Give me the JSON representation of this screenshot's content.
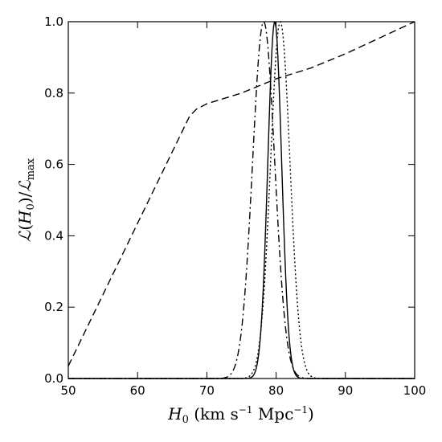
{
  "chart_data": {
    "type": "line",
    "xlabel": "H_0 (km s^-1 Mpc^-1)",
    "ylabel": "L(H_0)/L_max",
    "xlim": [
      50,
      100
    ],
    "ylim": [
      0,
      1.0
    ],
    "x_ticks": [
      "50",
      "60",
      "70",
      "80",
      "90",
      "100"
    ],
    "y_ticks": [
      "0.0",
      "0.2",
      "0.4",
      "0.6",
      "0.8",
      "1.0"
    ],
    "legend": "none",
    "grid": false,
    "series": [
      {
        "style": "dashed",
        "x": [
          50,
          52,
          54,
          56,
          58,
          60,
          62,
          64,
          66,
          67.5,
          68.5,
          70,
          75,
          80,
          85,
          90,
          95,
          100
        ],
        "y": [
          0.035,
          0.115,
          0.195,
          0.275,
          0.355,
          0.435,
          0.515,
          0.595,
          0.675,
          0.735,
          0.755,
          0.77,
          0.8,
          0.84,
          0.87,
          0.91,
          0.955,
          1.0
        ]
      },
      {
        "style": "solid",
        "gaussian": {
          "mean": 79.8,
          "sigma": 1.0
        },
        "x": [
          76,
          77,
          78,
          78.5,
          79,
          79.5,
          79.8,
          80.1,
          80.6,
          81.1,
          81.6,
          82.6,
          83.6
        ],
        "y": [
          0.0,
          0.02,
          0.2,
          0.42,
          0.73,
          0.96,
          1.0,
          0.96,
          0.73,
          0.42,
          0.2,
          0.02,
          0.0
        ]
      },
      {
        "style": "dashdot",
        "gaussian": {
          "mean": 78.2,
          "sigma": 1.6
        },
        "x": [
          72,
          73,
          74,
          75,
          76,
          77,
          78.2,
          79.4,
          80.4,
          81.4,
          82.4,
          83.4,
          84.4
        ],
        "y": [
          0.0,
          0.01,
          0.05,
          0.14,
          0.39,
          0.75,
          1.0,
          0.76,
          0.39,
          0.14,
          0.05,
          0.01,
          0.0
        ]
      },
      {
        "style": "dotted",
        "gaussian": {
          "mean": 80.6,
          "sigma": 1.4
        },
        "x": [
          75,
          76,
          77,
          78,
          79,
          80.6,
          82.2,
          83.2,
          84.2,
          85.2,
          86.2
        ],
        "y": [
          0.0,
          0.01,
          0.07,
          0.23,
          0.52,
          1.0,
          0.52,
          0.23,
          0.07,
          0.01,
          0.0
        ]
      }
    ]
  }
}
